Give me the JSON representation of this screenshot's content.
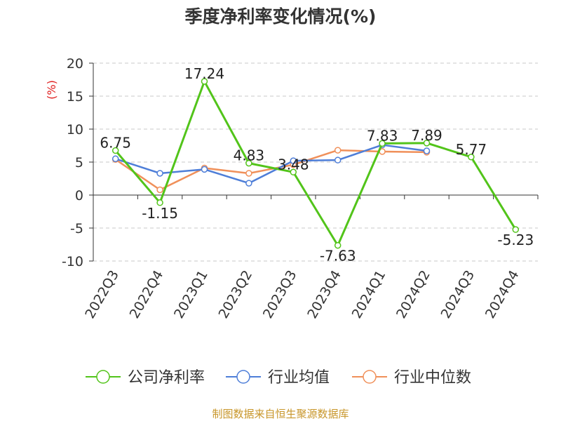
{
  "chart_data": {
    "type": "line",
    "title": "季度净利率变化情况(%)",
    "ylabel": "(%)",
    "xlabel": "",
    "categories": [
      "2022Q3",
      "2022Q4",
      "2023Q1",
      "2023Q2",
      "2023Q3",
      "2023Q4",
      "2024Q1",
      "2024Q2",
      "2024Q3",
      "2024Q4"
    ],
    "ylim": [
      -10,
      20
    ],
    "yticks": [
      20,
      15,
      10,
      5,
      0,
      -5,
      -10
    ],
    "grid": true,
    "legend_position": "bottom",
    "series": [
      {
        "name": "公司净利率",
        "color": "#52c41a",
        "values": [
          6.75,
          -1.15,
          17.24,
          4.83,
          3.48,
          -7.63,
          7.83,
          7.89,
          5.77,
          -5.23
        ],
        "labels": [
          "6.75",
          "-1.15",
          "17.24",
          "4.83",
          "3.48",
          "-7.63",
          "7.83",
          "7.89",
          "5.77",
          "-5.23"
        ]
      },
      {
        "name": "行业均值",
        "color": "#4e7ed8",
        "values": [
          5.5,
          3.3,
          3.9,
          1.8,
          5.2,
          5.3,
          7.6,
          6.7,
          null,
          null
        ]
      },
      {
        "name": "行业中位数",
        "color": "#f0905a",
        "values": [
          5.4,
          0.8,
          4.1,
          3.3,
          4.6,
          6.8,
          6.6,
          6.5,
          null,
          null
        ]
      }
    ],
    "source": "制图数据来自恒生聚源数据库"
  }
}
